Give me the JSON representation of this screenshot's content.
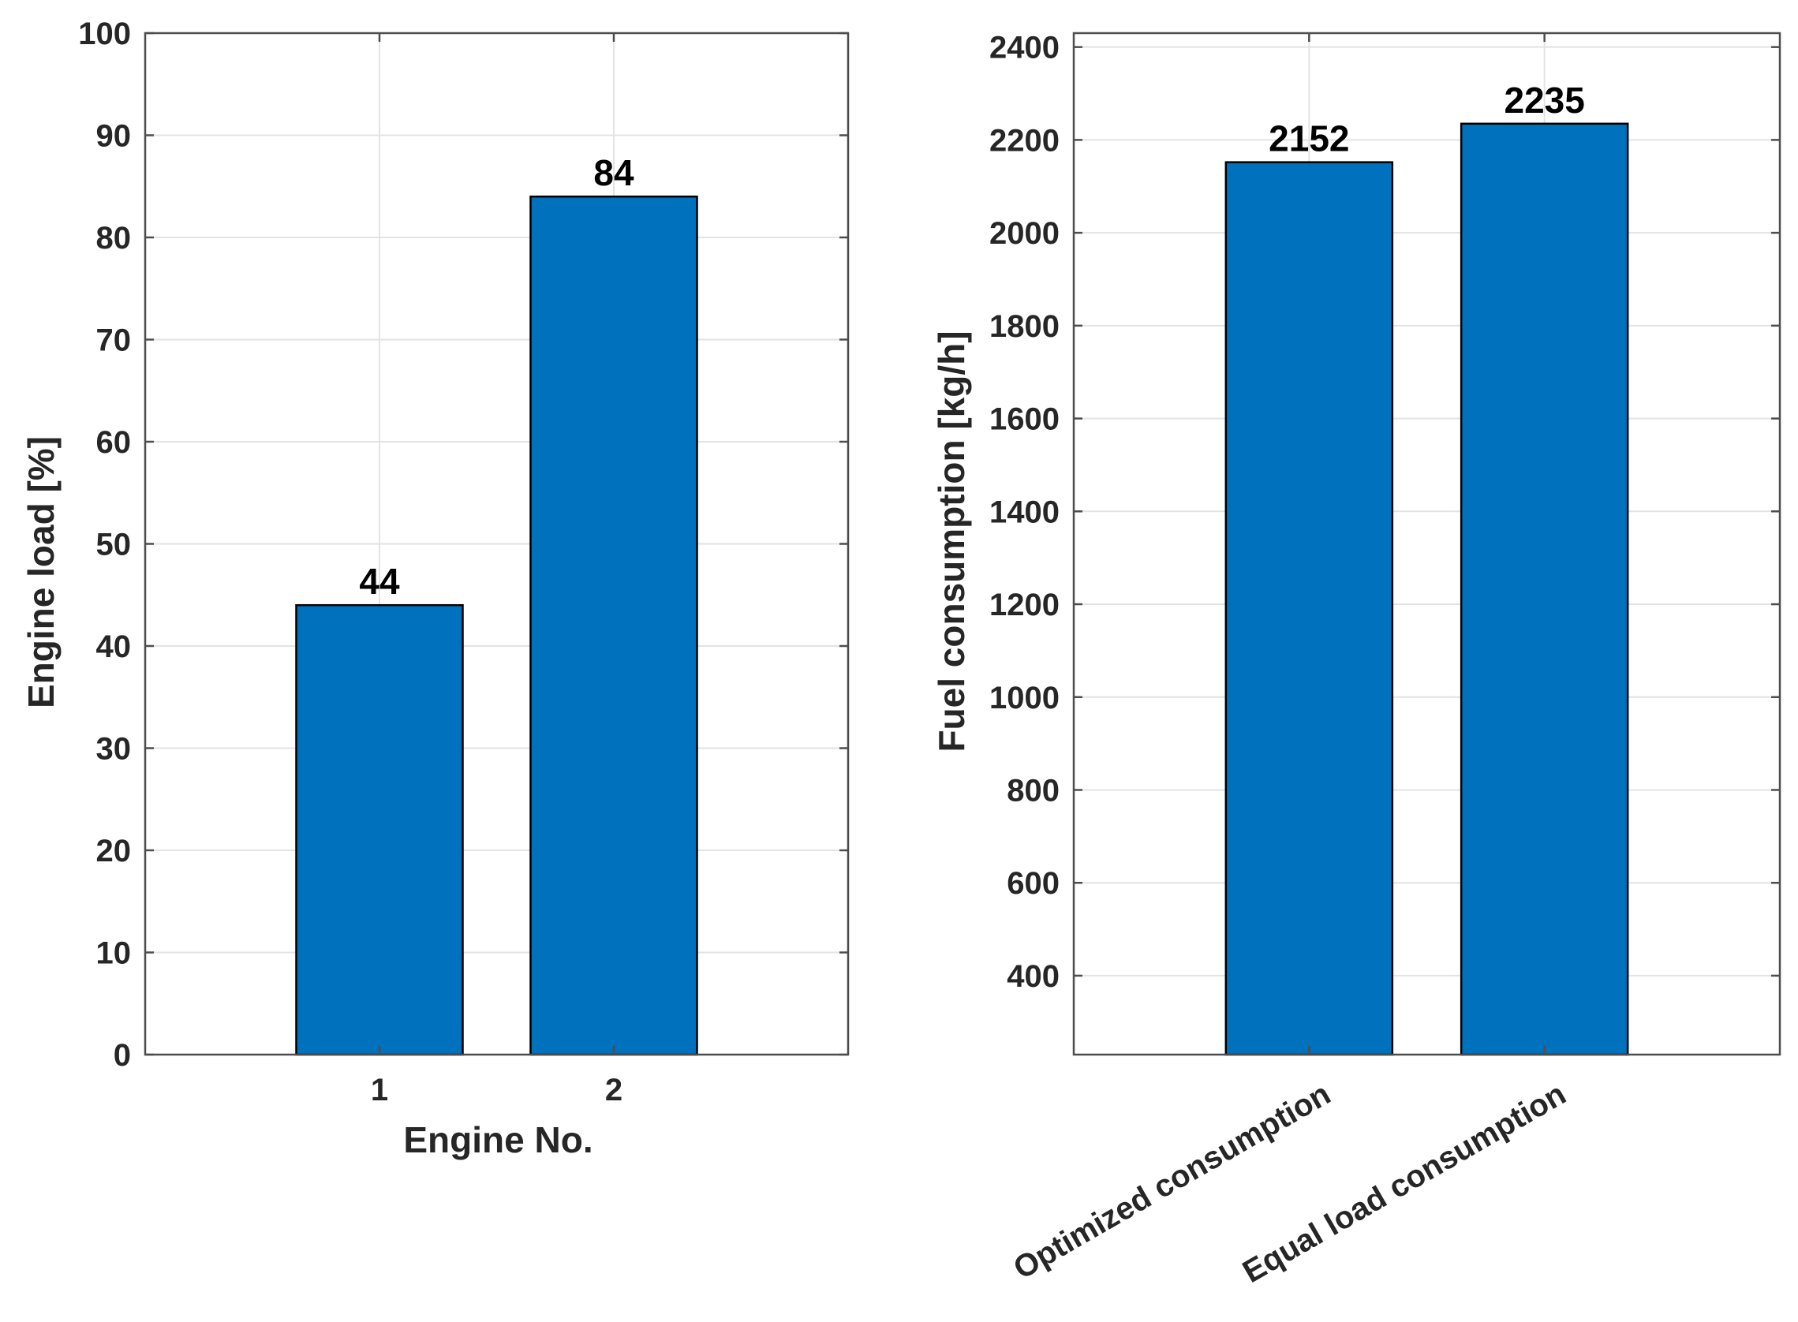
{
  "chart_data": [
    {
      "type": "bar",
      "categories": [
        "1",
        "2"
      ],
      "values": [
        44,
        84
      ],
      "data_labels": [
        "44",
        "84"
      ],
      "xlabel": "Engine No.",
      "ylabel": "Engine load [%]",
      "ylim": [
        0,
        100
      ],
      "yticks": [
        0,
        10,
        20,
        30,
        40,
        50,
        60,
        70,
        80,
        90,
        100
      ],
      "xlim": [
        0,
        3
      ],
      "grid": true,
      "bar_color": "#0072BD"
    },
    {
      "type": "bar",
      "categories": [
        "Optimized consumption",
        "Equal load consumption"
      ],
      "values": [
        2152,
        2235
      ],
      "data_labels": [
        "2152",
        "2235"
      ],
      "xlabel": "",
      "ylabel": "Fuel consumption [kg/h]",
      "ylim": [
        230,
        2430
      ],
      "yticks": [
        400,
        600,
        800,
        1000,
        1200,
        1400,
        1600,
        1800,
        2000,
        2200,
        2400
      ],
      "xlim": [
        0,
        3
      ],
      "grid": true,
      "xtick_rotation": 30,
      "bar_color": "#0072BD"
    }
  ]
}
